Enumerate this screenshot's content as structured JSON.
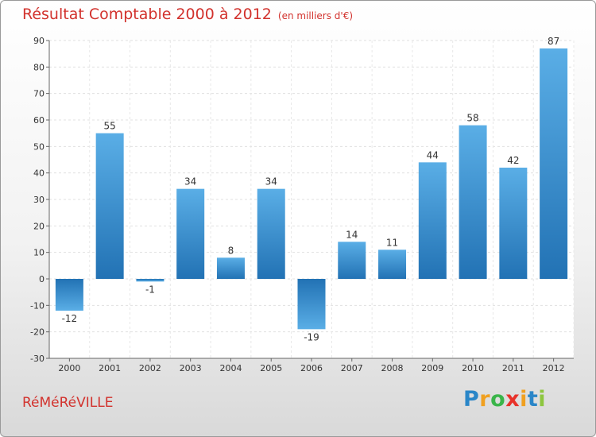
{
  "title": "Résultat Comptable 2000 à 2012",
  "unit_note": "(en milliers d'€)",
  "town": "RéMéRéVILLE",
  "logo": {
    "letters": [
      "P",
      "r",
      "o",
      "x",
      "i",
      "t",
      "i"
    ],
    "colors": [
      "#2a86c8",
      "#f0a020",
      "#3ab54a",
      "#e8322a",
      "#f0a020",
      "#2a86c8",
      "#8dc63f"
    ]
  },
  "colors": {
    "bar_light": "#5aaee6",
    "bar_dark": "#2272b4",
    "title": "#d2322d"
  },
  "chart_data": {
    "type": "bar",
    "categories": [
      "2000",
      "2001",
      "2002",
      "2003",
      "2004",
      "2005",
      "2006",
      "2007",
      "2008",
      "2009",
      "2010",
      "2011",
      "2012"
    ],
    "values": [
      -12,
      55,
      -1,
      34,
      8,
      34,
      -19,
      14,
      11,
      44,
      58,
      42,
      87
    ],
    "value_labels": [
      "-12",
      "55",
      "-1",
      "34",
      "8",
      "34",
      "-19",
      "14",
      "11",
      "44",
      "58",
      "42",
      "87"
    ],
    "ylim": [
      -30,
      90
    ],
    "yticks": [
      "-30",
      "-20",
      "-10",
      "0",
      "10",
      "20",
      "30",
      "40",
      "50",
      "60",
      "70",
      "80",
      "90"
    ],
    "grid": true
  }
}
